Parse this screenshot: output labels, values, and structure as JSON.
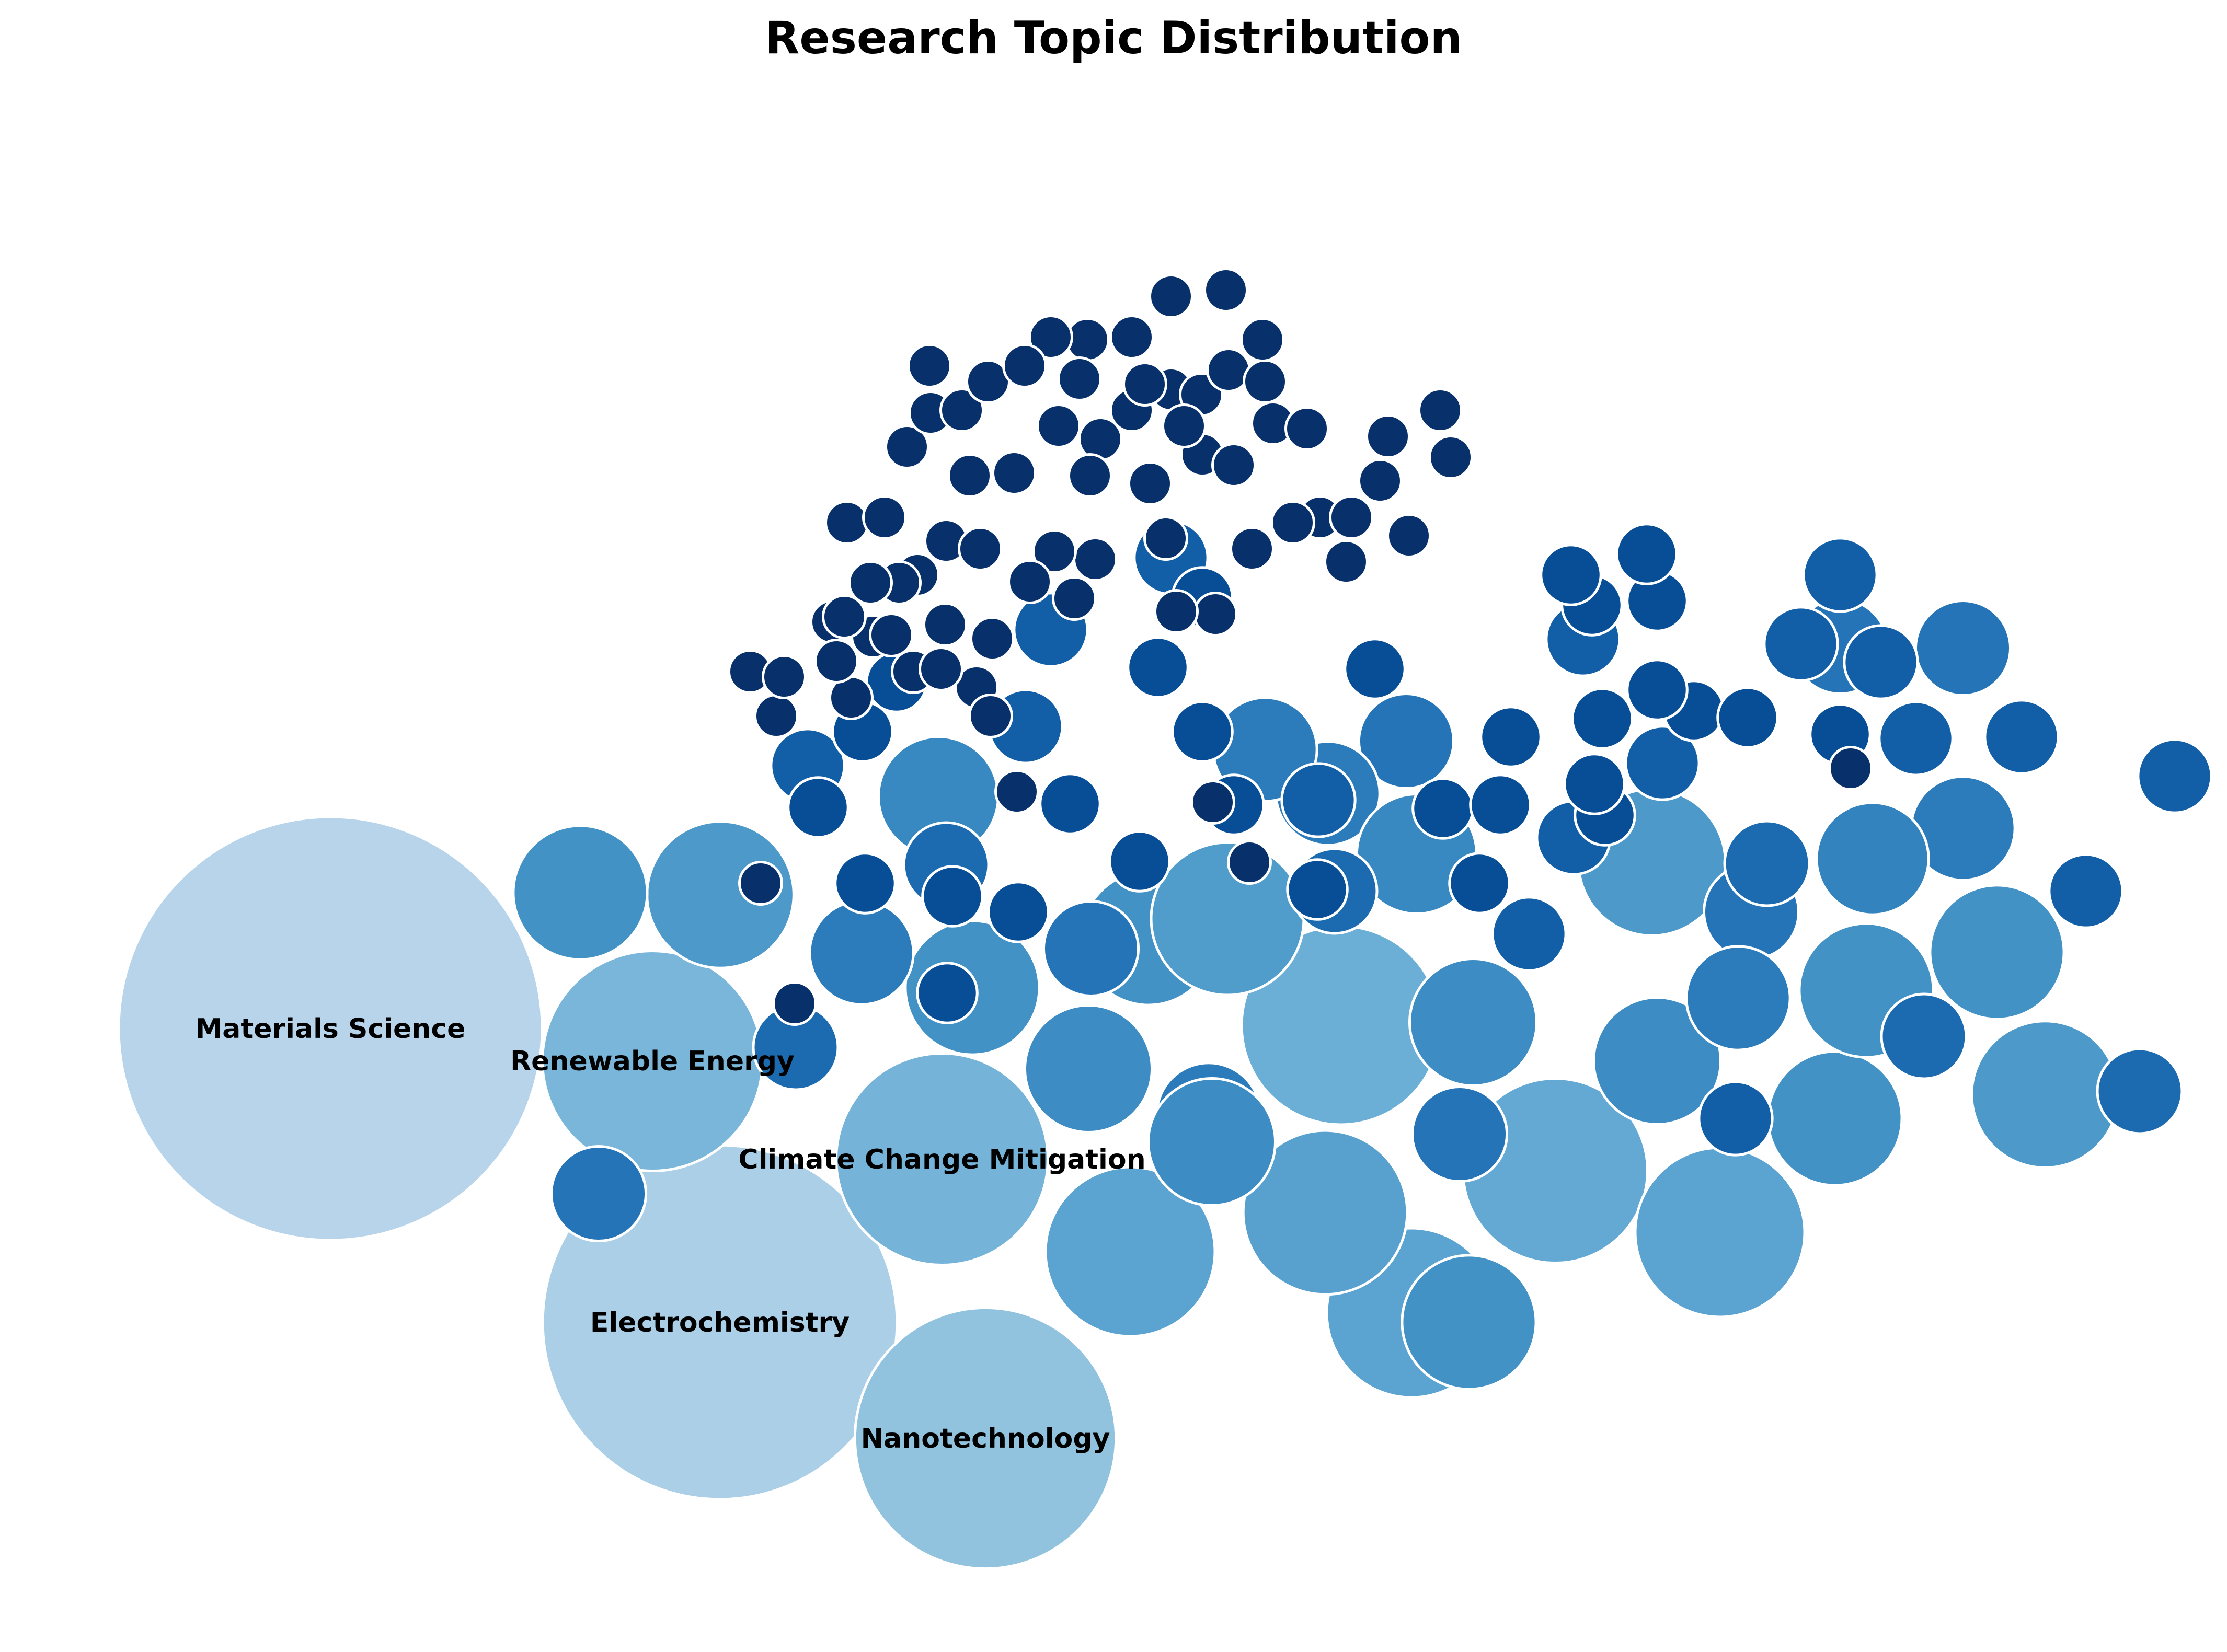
{
  "chart_data": {
    "type": "bubble",
    "title": "Research Topic Distribution",
    "color_scale": "Blues (larger = lighter)",
    "labeled_bubbles": [
      {
        "label": "Materials Science",
        "value": 100
      },
      {
        "label": "Electrochemistry",
        "value": 70
      },
      {
        "label": "Nanotechnology",
        "value": 38
      },
      {
        "label": "Climate Change Mitigation",
        "value": 25
      },
      {
        "label": "Renewable Energy",
        "value": 27
      }
    ],
    "unlabeled_bubbles": [
      {
        "value": 22
      },
      {
        "value": 19
      },
      {
        "value": 16
      },
      {
        "value": 16
      },
      {
        "value": 15
      },
      {
        "value": 16
      },
      {
        "value": 10
      },
      {
        "value": 12
      },
      {
        "value": 10
      },
      {
        "value": 10
      },
      {
        "value": 13
      },
      {
        "value": 12
      },
      {
        "value": 9
      },
      {
        "value": 10
      },
      {
        "value": 9
      },
      {
        "value": 9
      },
      {
        "value": 10
      },
      {
        "value": 10
      },
      {
        "value": 6
      },
      {
        "value": 10
      },
      {
        "value": 12
      },
      {
        "value": 9
      },
      {
        "value": 6
      },
      {
        "value": 5
      },
      {
        "value": 7
      },
      {
        "value": 6
      },
      {
        "value": 8
      },
      {
        "value": 8
      },
      {
        "value": 5
      },
      {
        "value": 5
      },
      {
        "value": 4
      },
      {
        "value": 5
      },
      {
        "value": 6
      },
      {
        "value": 4
      },
      {
        "value": 5
      },
      {
        "value": 6
      },
      {
        "value": 6
      },
      {
        "value": 5
      },
      {
        "value": 5
      },
      {
        "value": 4
      },
      {
        "value": 4
      },
      {
        "value": 3
      },
      {
        "value": 3
      },
      {
        "value": 4
      },
      {
        "value": 3
      },
      {
        "value": 4
      },
      {
        "value": 3
      },
      {
        "value": 3
      },
      {
        "value": 3
      },
      {
        "value": 3
      },
      {
        "value": 3
      },
      {
        "value": 3
      },
      {
        "value": 3
      },
      {
        "value": 3
      },
      {
        "value": 3
      },
      {
        "value": 3
      },
      {
        "value": 3
      },
      {
        "value": 3
      },
      {
        "value": 3
      },
      {
        "value": 3
      },
      {
        "value": 2
      },
      {
        "value": 2
      },
      {
        "value": 2
      },
      {
        "value": 2
      },
      {
        "value": 2
      },
      {
        "value": 2
      },
      {
        "value": 2
      },
      {
        "value": 2
      },
      {
        "value": 2
      },
      {
        "value": 2
      },
      {
        "value": 2
      },
      {
        "value": 2
      },
      {
        "value": 2
      },
      {
        "value": 2
      },
      {
        "value": 2
      },
      {
        "value": 2
      },
      {
        "value": 2
      },
      {
        "value": 2
      },
      {
        "value": 2
      },
      {
        "value": 2
      },
      {
        "value": 2
      },
      {
        "value": 2
      },
      {
        "value": 2
      },
      {
        "value": 2
      },
      {
        "value": 2
      },
      {
        "value": 2
      },
      {
        "value": 2
      },
      {
        "value": 2
      },
      {
        "value": 2
      },
      {
        "value": 2
      },
      {
        "value": 1
      },
      {
        "value": 1
      },
      {
        "value": 1
      },
      {
        "value": 1
      },
      {
        "value": 1
      },
      {
        "value": 1
      },
      {
        "value": 1
      },
      {
        "value": 1
      },
      {
        "value": 1
      },
      {
        "value": 1
      },
      {
        "value": 1
      },
      {
        "value": 1
      },
      {
        "value": 1
      },
      {
        "value": 1
      },
      {
        "value": 1
      },
      {
        "value": 1
      },
      {
        "value": 1
      },
      {
        "value": 1
      },
      {
        "value": 1
      },
      {
        "value": 1
      },
      {
        "value": 1
      },
      {
        "value": 1
      },
      {
        "value": 1
      },
      {
        "value": 1
      },
      {
        "value": 1
      },
      {
        "value": 1
      },
      {
        "value": 1
      },
      {
        "value": 1
      },
      {
        "value": 1
      },
      {
        "value": 1
      },
      {
        "value": 1
      },
      {
        "value": 1
      },
      {
        "value": 1
      },
      {
        "value": 1
      },
      {
        "value": 1
      },
      {
        "value": 1
      },
      {
        "value": 1
      },
      {
        "value": 1
      },
      {
        "value": 1
      },
      {
        "value": 1
      },
      {
        "value": 1
      },
      {
        "value": 1
      },
      {
        "value": 1
      },
      {
        "value": 1
      },
      {
        "value": 1
      },
      {
        "value": 1
      },
      {
        "value": 1
      },
      {
        "value": 1
      },
      {
        "value": 1
      },
      {
        "value": 1
      },
      {
        "value": 1
      },
      {
        "value": 1
      },
      {
        "value": 1
      },
      {
        "value": 1
      },
      {
        "value": 1
      },
      {
        "value": 1
      },
      {
        "value": 1
      },
      {
        "value": 1
      },
      {
        "value": 1
      },
      {
        "value": 1
      },
      {
        "value": 1
      },
      {
        "value": 1
      },
      {
        "value": 1
      },
      {
        "value": 1
      },
      {
        "value": 1
      },
      {
        "value": 1
      },
      {
        "value": 1
      },
      {
        "value": 1
      },
      {
        "value": 1
      },
      {
        "value": 1
      },
      {
        "value": 1
      },
      {
        "value": 1
      },
      {
        "value": 1
      },
      {
        "value": 1
      },
      {
        "value": 1
      },
      {
        "value": 1
      },
      {
        "value": 1
      },
      {
        "value": 1
      },
      {
        "value": 1
      },
      {
        "value": 1
      }
    ],
    "legend": "none",
    "grid": false,
    "axes": "hidden"
  }
}
